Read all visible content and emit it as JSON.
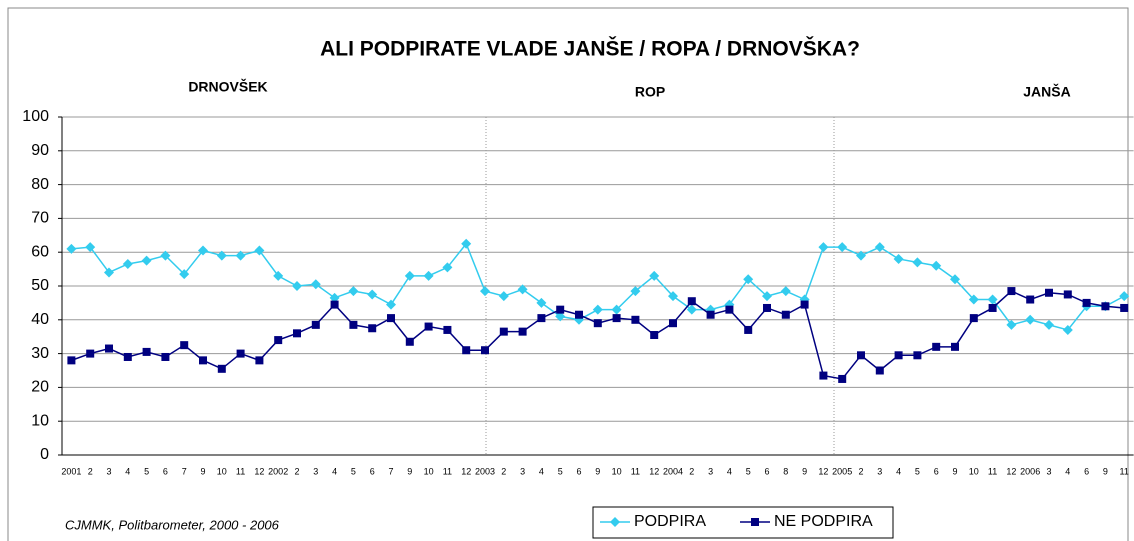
{
  "chart_data": {
    "type": "line",
    "title": "ALI PODPIRATE VLADE JANŠE / ROPA / DRNOVŠKA?",
    "annotations": [
      "DRNOVŠEK",
      "ROP",
      "JANŠA"
    ],
    "source": "CJMMK, Politbarometer, 2000 - 2006",
    "categories": [
      "2001",
      "2",
      "3",
      "4",
      "5",
      "6",
      "7",
      "9",
      "10",
      "11",
      "12",
      "2002",
      "2",
      "3",
      "4",
      "5",
      "6",
      "7",
      "9",
      "10",
      "11",
      "12",
      "2003",
      "2",
      "3",
      "4",
      "5",
      "6",
      "9",
      "10",
      "11",
      "12",
      "2004",
      "2",
      "3",
      "4",
      "5",
      "6",
      "8",
      "9",
      "12",
      "2005",
      "2",
      "3",
      "4",
      "5",
      "6",
      "9",
      "10",
      "11",
      "12",
      "2006",
      "3",
      "4",
      "6",
      "9",
      "11"
    ],
    "series": [
      {
        "name": "PODPIRA",
        "color": "#33ccee",
        "marker": "diamond",
        "values": [
          61,
          61.5,
          54,
          56.5,
          57.5,
          59,
          53.5,
          60.5,
          59,
          59,
          60.5,
          53,
          50,
          50.5,
          46.5,
          48.5,
          47.5,
          44.5,
          53,
          53,
          55.5,
          62.5,
          48.5,
          47,
          49,
          45,
          41,
          40,
          43,
          43,
          48.5,
          53,
          47,
          43,
          43,
          44.5,
          52,
          47,
          48.5,
          46,
          61.5,
          61.5,
          59,
          61.5,
          58,
          57,
          56,
          52,
          46,
          46,
          38.5,
          40,
          38.5,
          37,
          44,
          44,
          47
        ]
      },
      {
        "name": "NE PODPIRA",
        "color": "#000080",
        "marker": "square",
        "values": [
          28,
          30,
          31.5,
          29,
          30.5,
          29,
          32.5,
          28,
          25.5,
          30,
          28,
          34,
          36,
          38.5,
          44.5,
          38.5,
          37.5,
          40.5,
          33.5,
          38,
          37,
          31,
          31,
          36.5,
          36.5,
          40.5,
          43,
          41.5,
          39,
          40.5,
          40,
          35.5,
          39,
          45.5,
          41.5,
          43,
          37,
          43.5,
          41.5,
          44.5,
          23.5,
          22.5,
          29.5,
          25,
          29.5,
          29.5,
          32,
          32,
          40.5,
          43.5,
          48.5,
          46,
          48,
          47.5,
          45,
          44,
          43.5
        ]
      }
    ],
    "ylim": [
      0,
      100
    ],
    "yticks": [
      0,
      10,
      20,
      30,
      40,
      50,
      60,
      70,
      80,
      90,
      100
    ],
    "grid": true
  }
}
